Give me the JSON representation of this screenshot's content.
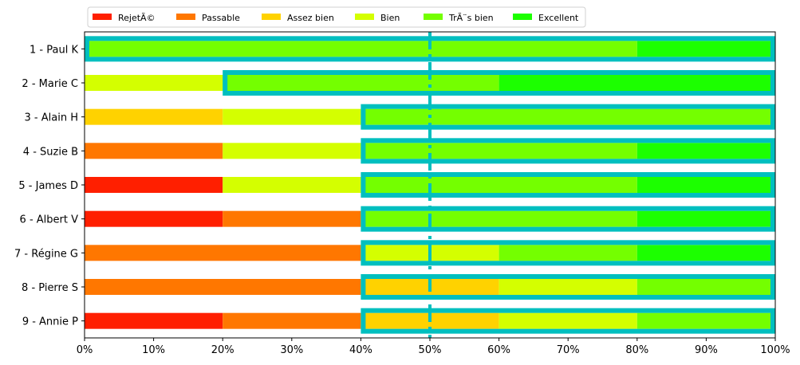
{
  "chart_data": {
    "type": "bar",
    "orientation": "horizontal",
    "stacked": true,
    "categories": [
      "1 - Paul K",
      "2 - Marie C",
      "3 - Alain H",
      "4 - Suzie B",
      "5 - James D",
      "6 - Albert V",
      "7 - Régine G",
      "8 - Pierre S",
      "9 - Annie P"
    ],
    "series": [
      {
        "name": "RejetÃ©",
        "color": "#ff1f00",
        "values": [
          0,
          0,
          0,
          0,
          20,
          20,
          0,
          0,
          20
        ]
      },
      {
        "name": "Passable",
        "color": "#ff7700",
        "values": [
          0,
          0,
          0,
          20,
          0,
          20,
          40,
          40,
          20
        ]
      },
      {
        "name": "Assez bien",
        "color": "#ffd200",
        "values": [
          0,
          0,
          20,
          0,
          0,
          0,
          0,
          20,
          20
        ]
      },
      {
        "name": "Bien",
        "color": "#d4ff00",
        "values": [
          0,
          20,
          20,
          20,
          20,
          0,
          20,
          20,
          20
        ]
      },
      {
        "name": "TrÃ¨s bien",
        "color": "#74ff00",
        "values": [
          80,
          40,
          60,
          40,
          40,
          40,
          20,
          20,
          20
        ]
      },
      {
        "name": "Excellent",
        "color": "#1cff00",
        "values": [
          20,
          40,
          0,
          20,
          20,
          20,
          20,
          0,
          0
        ]
      }
    ],
    "majority_grade_start": [
      0,
      20,
      40,
      40,
      40,
      40,
      40,
      40,
      40
    ],
    "highlight_color": "#00bfbf",
    "median_line": 50,
    "x_ticks": [
      "0%",
      "10%",
      "20%",
      "30%",
      "40%",
      "50%",
      "60%",
      "70%",
      "80%",
      "90%",
      "100%"
    ],
    "xlim": [
      0,
      100
    ],
    "grid": false,
    "legend_position": "top-left"
  }
}
